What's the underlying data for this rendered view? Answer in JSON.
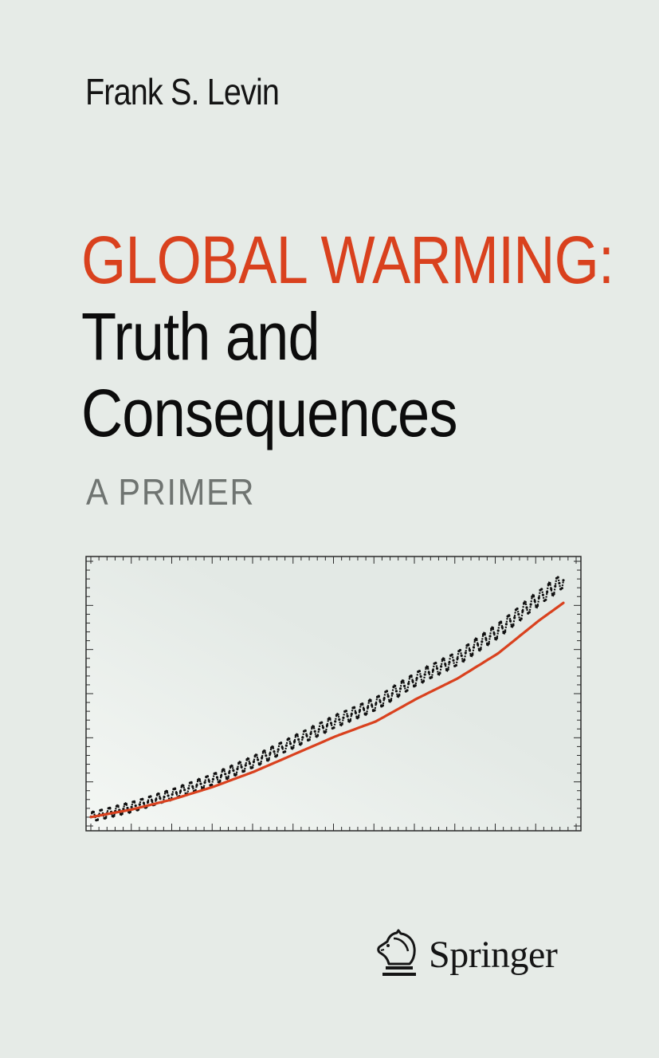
{
  "cover": {
    "author": "Frank S. Levin",
    "title_line1": "GLOBAL WARMING:",
    "title_line2": "Truth and",
    "title_line3": "Consequences",
    "subtitle": "A PRIMER",
    "publisher": "Springer",
    "publisher_logo_icon": "horse-head-icon",
    "colors": {
      "background": "#e6ebe7",
      "title_accent": "#d9411e",
      "text": "#0c0c0c",
      "subtitle": "#6f7471"
    }
  },
  "chart_data": {
    "type": "line",
    "title": "",
    "xlabel": "",
    "ylabel": "",
    "grid": false,
    "x_range": [
      0,
      58
    ],
    "y_range": [
      0,
      100
    ],
    "series": [
      {
        "color": "#111111",
        "style": "dotted-seasonal",
        "x": [
          0,
          5,
          10,
          15,
          20,
          25,
          30,
          35,
          40,
          45,
          50,
          55,
          58
        ],
        "values": [
          1,
          5,
          10,
          16,
          23,
          31,
          39,
          46,
          56,
          64,
          75,
          88,
          95
        ]
      },
      {
        "color": "#d9411e",
        "style": "solid",
        "x": [
          0,
          5,
          10,
          15,
          20,
          25,
          30,
          35,
          40,
          45,
          50,
          55,
          58
        ],
        "values": [
          1,
          4,
          8,
          13,
          19,
          26,
          33,
          39,
          48,
          56,
          66,
          79,
          86
        ]
      }
    ]
  }
}
